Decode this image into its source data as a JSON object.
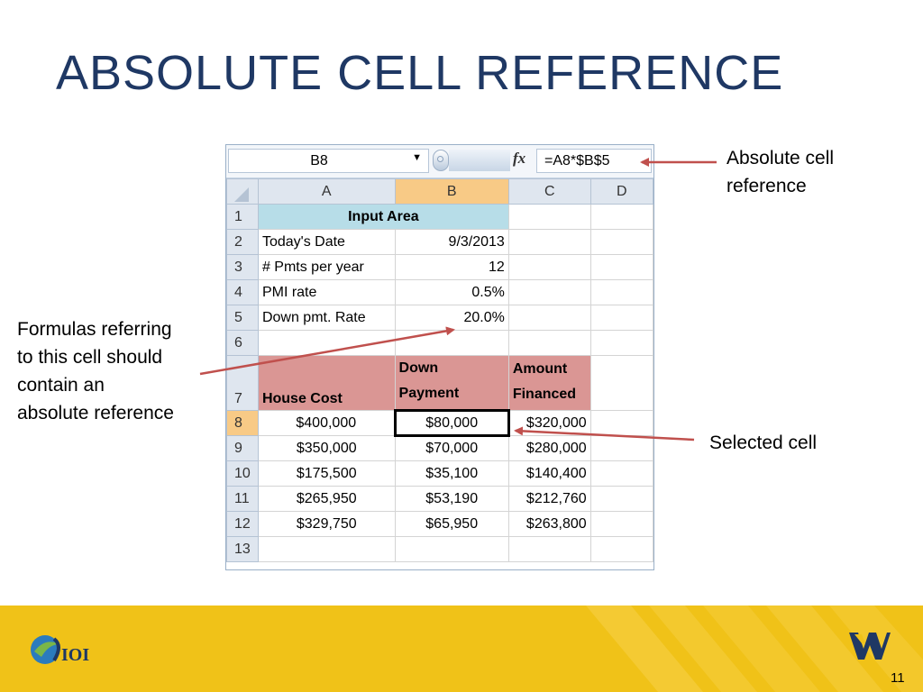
{
  "slide": {
    "title": "ABSOLUTE CELL REFERENCE",
    "page_number": "11"
  },
  "formula_bar": {
    "name_box": "B8",
    "formula": "=A8*$B$5"
  },
  "columns": [
    "A",
    "B",
    "C",
    "D"
  ],
  "rows": {
    "r1": {
      "num": "1",
      "a": "Input Area"
    },
    "r2": {
      "num": "2",
      "a": "Today's Date",
      "b": "9/3/2013"
    },
    "r3": {
      "num": "3",
      "a": "# Pmts per year",
      "b": "12"
    },
    "r4": {
      "num": "4",
      "a": "PMI rate",
      "b": "0.5%"
    },
    "r5": {
      "num": "5",
      "a": "Down pmt. Rate",
      "b": "20.0%"
    },
    "r6": {
      "num": "6"
    },
    "r7": {
      "num": "7",
      "a": "House Cost",
      "b": "Down\nPayment",
      "c": "Amount\nFinanced"
    },
    "r8": {
      "num": "8",
      "a": "$400,000",
      "b": "$80,000",
      "c": "$320,000"
    },
    "r9": {
      "num": "9",
      "a": "$350,000",
      "b": "$70,000",
      "c": "$280,000"
    },
    "r10": {
      "num": "10",
      "a": "$175,500",
      "b": "$35,100",
      "c": "$140,400"
    },
    "r11": {
      "num": "11",
      "a": "$265,950",
      "b": "$53,190",
      "c": "$212,760"
    },
    "r12": {
      "num": "12",
      "a": "$329,750",
      "b": "$65,950",
      "c": "$263,800"
    },
    "r13": {
      "num": "13"
    }
  },
  "callouts": {
    "absolute": "Absolute cell\nreference",
    "formulas": "Formulas referring\nto this cell should\ncontain an\nabsolute reference",
    "selected": "Selected cell"
  },
  "colors": {
    "title": "#1f3864",
    "arrow": "#c0504d",
    "input_area": "#b7dde8",
    "header_fill": "#da9694",
    "selected_header": "#f8ca86",
    "footer": "#f0c218",
    "wvu_blue": "#1f3864"
  },
  "icons": {
    "dropdown": "dropdown-arrow-icon",
    "fx": "fx-icon",
    "logo_left": "sioi-logo",
    "logo_right": "wv-logo"
  }
}
